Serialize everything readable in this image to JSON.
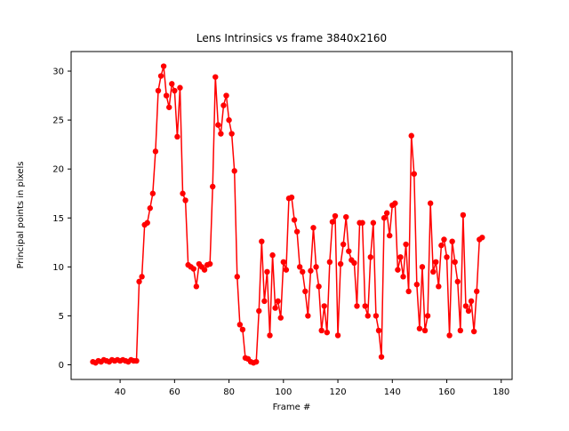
{
  "chart_data": {
    "type": "line",
    "title": "Lens Intrinsics vs frame 3840x2160",
    "xlabel": "Frame #",
    "ylabel": "Principal points in pixels",
    "legend": null,
    "grid": false,
    "line_color": "#ff0000",
    "marker": "circle",
    "xlim": [
      22,
      184
    ],
    "ylim": [
      -1.5,
      32
    ],
    "xticks": [
      40,
      60,
      80,
      100,
      120,
      140,
      160,
      180
    ],
    "yticks": [
      0,
      5,
      10,
      15,
      20,
      25,
      30
    ],
    "x": [
      30,
      31,
      32,
      33,
      34,
      35,
      36,
      37,
      38,
      39,
      40,
      41,
      42,
      43,
      44,
      45,
      46,
      47,
      48,
      49,
      50,
      51,
      52,
      53,
      54,
      55,
      56,
      57,
      58,
      59,
      60,
      61,
      62,
      63,
      64,
      65,
      66,
      67,
      68,
      69,
      70,
      71,
      72,
      73,
      74,
      75,
      76,
      77,
      78,
      79,
      80,
      81,
      82,
      83,
      84,
      85,
      86,
      87,
      88,
      89,
      90,
      91,
      92,
      93,
      94,
      95,
      96,
      97,
      98,
      99,
      100,
      101,
      102,
      103,
      104,
      105,
      106,
      107,
      108,
      109,
      110,
      111,
      112,
      113,
      114,
      115,
      116,
      117,
      118,
      119,
      120,
      121,
      122,
      123,
      124,
      125,
      126,
      127,
      128,
      129,
      130,
      131,
      132,
      133,
      134,
      135,
      136,
      137,
      138,
      139,
      140,
      141,
      142,
      143,
      144,
      145,
      146,
      147,
      148,
      149,
      150,
      151,
      152,
      153,
      154,
      155,
      156,
      157,
      158,
      159,
      160,
      161,
      162,
      163,
      164,
      165,
      166,
      167,
      168,
      169,
      170,
      171,
      172,
      173
    ],
    "y": [
      0.3,
      0.2,
      0.4,
      0.3,
      0.5,
      0.4,
      0.3,
      0.5,
      0.4,
      0.5,
      0.4,
      0.5,
      0.4,
      0.3,
      0.5,
      0.4,
      0.4,
      8.5,
      9.0,
      14.3,
      14.5,
      16.0,
      17.5,
      21.8,
      28.0,
      29.5,
      30.5,
      27.5,
      26.3,
      28.7,
      28.0,
      23.3,
      28.3,
      17.5,
      16.8,
      10.2,
      10.0,
      9.8,
      8.0,
      10.3,
      10.0,
      9.7,
      10.2,
      10.3,
      18.2,
      29.4,
      24.5,
      23.6,
      26.5,
      27.5,
      25.0,
      23.6,
      19.8,
      9.0,
      4.1,
      3.6,
      0.7,
      0.6,
      0.3,
      0.2,
      0.3,
      5.5,
      12.6,
      6.5,
      9.5,
      3.0,
      11.2,
      5.8,
      6.5,
      4.8,
      10.5,
      9.7,
      17.0,
      17.1,
      14.8,
      13.6,
      10.0,
      9.5,
      7.5,
      5.0,
      9.6,
      14.0,
      10.0,
      8.0,
      3.5,
      6.0,
      3.3,
      10.5,
      14.6,
      15.2,
      3.0,
      10.3,
      12.3,
      15.1,
      11.6,
      10.7,
      10.4,
      6.0,
      14.5,
      14.5,
      6.0,
      5.0,
      11.0,
      14.5,
      5.0,
      3.5,
      0.8,
      15.0,
      15.5,
      13.2,
      16.3,
      16.5,
      9.7,
      11.0,
      9.0,
      12.3,
      7.5,
      23.4,
      19.5,
      8.2,
      3.7,
      10.0,
      3.5,
      5.0,
      16.5,
      9.5,
      10.5,
      8.0,
      12.2,
      12.8,
      11.0,
      3.0,
      12.6,
      10.5,
      8.5,
      3.5,
      15.3,
      6.0,
      5.5,
      6.5,
      3.4,
      7.5,
      12.8,
      13.0
    ]
  }
}
